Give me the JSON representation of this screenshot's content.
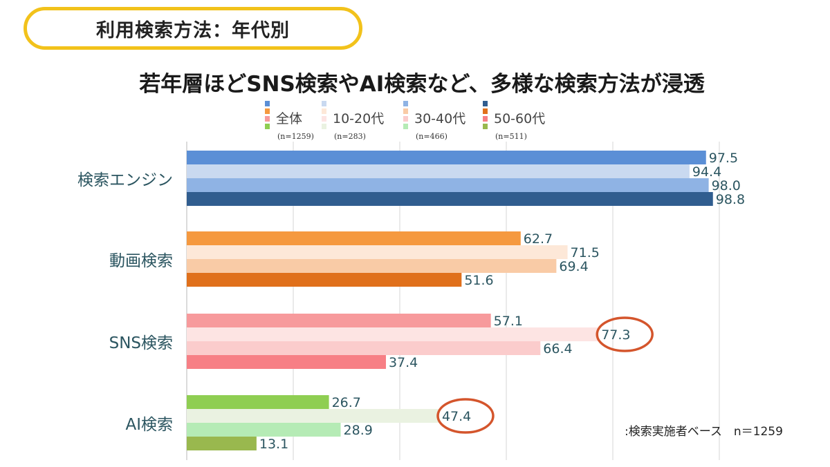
{
  "header": {
    "tag_label": "利用検索方法：年代別",
    "title": "若年層ほどSNS検索やAI検索など、多様な検索方法が浸透"
  },
  "note": ":検索実施者ベース　n＝1259",
  "chart_data": {
    "type": "bar",
    "orientation": "horizontal",
    "categories": [
      "検索エンジン",
      "動画検索",
      "SNS検索",
      "AI検索"
    ],
    "series": [
      {
        "name": "全体",
        "n_label": "(n=1259)",
        "values": [
          97.5,
          62.7,
          57.1,
          26.7
        ]
      },
      {
        "name": "10-20代",
        "n_label": "(n=283)",
        "values": [
          94.4,
          71.5,
          77.3,
          47.4
        ]
      },
      {
        "name": "30-40代",
        "n_label": "(n=466)",
        "values": [
          98.0,
          69.4,
          66.4,
          28.9
        ]
      },
      {
        "name": "50-60代",
        "n_label": "(n=511)",
        "values": [
          98.8,
          51.6,
          37.4,
          13.1
        ]
      }
    ],
    "colors": [
      [
        "#5b8fd6",
        "#c9d9f0",
        "#8fb3e4",
        "#305d8f"
      ],
      [
        "#f5993f",
        "#fde8d8",
        "#f9cba6",
        "#e0701b"
      ],
      [
        "#f79a9c",
        "#fde4e3",
        "#fbcccc",
        "#f77f85"
      ],
      [
        "#8fce52",
        "#eaf2e1",
        "#b5ebb5",
        "#99b84e"
      ]
    ],
    "legend_colors": [
      "#5b8fd6",
      "#c9d9f0",
      "#8fb3e4",
      "#305d8f"
    ],
    "highlighted": [
      {
        "category": 2,
        "series": 1
      },
      {
        "category": 3,
        "series": 1
      }
    ],
    "highlight_color": "#d4552c",
    "xlim": [
      0,
      100
    ],
    "grid": true,
    "legend_position": "top"
  }
}
